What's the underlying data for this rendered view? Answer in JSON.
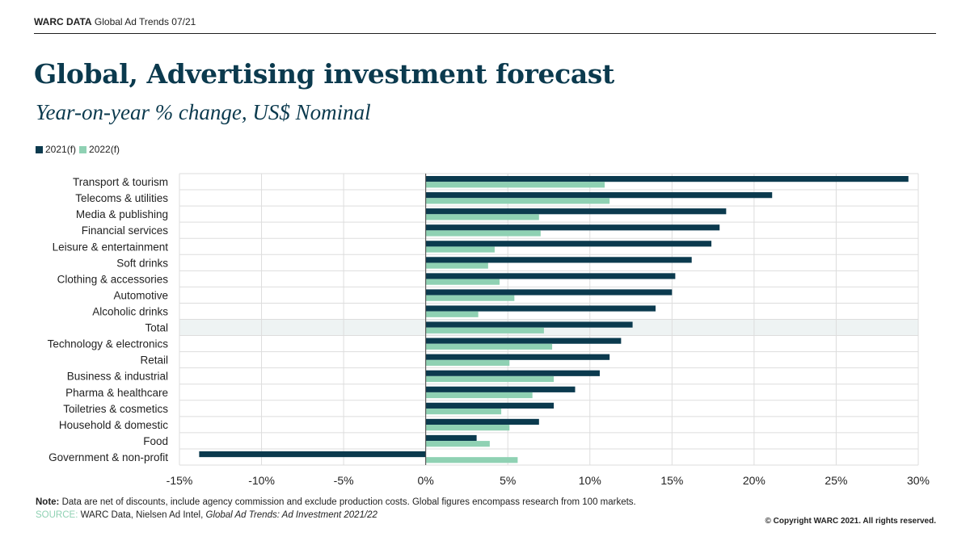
{
  "header": {
    "brand": "WARC DATA",
    "report": "Global Ad Trends 07/21"
  },
  "title": "Global, Advertising investment forecast",
  "subtitle": "Year-on-year % change, US$ Nominal",
  "colors": {
    "series_2021": "#0b3a4e",
    "series_2022": "#8fd1b3",
    "highlight_row": "#eef3f3",
    "grid": "#dddddd"
  },
  "chart_data": {
    "type": "bar",
    "orientation": "horizontal",
    "categories": [
      "Transport & tourism",
      "Telecoms & utilities",
      "Media & publishing",
      "Financial services",
      "Leisure & entertainment",
      "Soft drinks",
      "Clothing & accessories",
      "Automotive",
      "Alcoholic drinks",
      "Total",
      "Technology & electronics",
      "Retail",
      "Business & industrial",
      "Pharma & healthcare",
      "Toiletries & cosmetics",
      "Household & domestic",
      "Food",
      "Government & non-profit"
    ],
    "highlighted_category": "Total",
    "series": [
      {
        "name": "2021(f)",
        "values": [
          29.4,
          21.1,
          18.3,
          17.9,
          17.4,
          16.2,
          15.2,
          15.0,
          14.0,
          12.6,
          11.9,
          11.2,
          10.6,
          9.1,
          7.8,
          6.9,
          3.1,
          -13.8
        ]
      },
      {
        "name": "2022(f)",
        "values": [
          10.9,
          11.2,
          6.9,
          7.0,
          4.2,
          3.8,
          4.5,
          5.4,
          3.2,
          7.2,
          7.7,
          5.1,
          7.8,
          6.5,
          4.6,
          5.1,
          3.9,
          5.6
        ]
      }
    ],
    "xlim": [
      -15,
      30
    ],
    "xticks": [
      -15,
      -10,
      -5,
      0,
      5,
      10,
      15,
      20,
      25,
      30
    ],
    "xtick_labels": [
      "-15%",
      "-10%",
      "-5%",
      "0%",
      "5%",
      "10%",
      "15%",
      "20%",
      "25%",
      "30%"
    ],
    "grid": true,
    "legend_position": "top-left"
  },
  "footer": {
    "note_label": "Note:",
    "note_text": " Data are net of discounts, include agency commission and exclude production costs. Global figures encompass research from 100 markets.",
    "source_label": "SOURCE:",
    "source_text": " WARC Data, Nielsen Ad Intel, ",
    "source_italic": "Global Ad Trends: Ad Investment 2021/22",
    "copyright": "© Copyright WARC 2021. All rights reserved."
  }
}
